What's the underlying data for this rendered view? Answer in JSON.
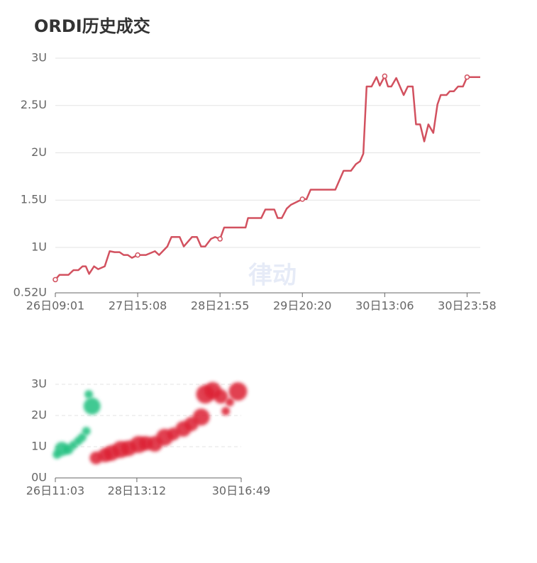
{
  "chart_data": [
    {
      "type": "line",
      "title": "ORDI历史成交",
      "watermark": "律动",
      "x": [
        0,
        0.5,
        1.6,
        2.2,
        2.8,
        3.3,
        3.7,
        4.1,
        4.7,
        5.2,
        6.0,
        6.6,
        7.2,
        7.8,
        8.3,
        8.8,
        9.3,
        10,
        11,
        12.1,
        12.6,
        13.6,
        14.1,
        15.1,
        15.6,
        16.6,
        17.2,
        17.7,
        18.2,
        18.9,
        19.4,
        20,
        20.5,
        23.1,
        23.4,
        25,
        25.5,
        26.6,
        27,
        27.5,
        28.1,
        28.6,
        30,
        30.5,
        31,
        34,
        35,
        35.9,
        36.5,
        37,
        37.4,
        37.8,
        38.4,
        39,
        39.4,
        40,
        40.4,
        40.8,
        41.4,
        42.3,
        42.8,
        43.4,
        43.8,
        44.3,
        44.8,
        45.3,
        45.9,
        46.4,
        46.8,
        47.5,
        47.9,
        48.4,
        48.9,
        49.5,
        50,
        51.6
      ],
      "series": [
        {
          "color": "#d2515f",
          "values": [
            0.66,
            0.71,
            0.71,
            0.76,
            0.76,
            0.8,
            0.8,
            0.72,
            0.8,
            0.77,
            0.8,
            0.96,
            0.95,
            0.95,
            0.92,
            0.92,
            0.89,
            0.92,
            0.92,
            0.96,
            0.92,
            1.01,
            1.11,
            1.11,
            1.01,
            1.11,
            1.11,
            1.01,
            1.01,
            1.09,
            1.11,
            1.09,
            1.21,
            1.21,
            1.31,
            1.31,
            1.4,
            1.4,
            1.31,
            1.31,
            1.41,
            1.45,
            1.51,
            1.51,
            1.61,
            1.61,
            1.81,
            1.81,
            1.88,
            1.91,
            1.99,
            2.7,
            2.7,
            2.8,
            2.71,
            2.81,
            2.7,
            2.7,
            2.79,
            2.61,
            2.7,
            2.7,
            2.3,
            2.3,
            2.12,
            2.3,
            2.21,
            2.51,
            2.61,
            2.61,
            2.65,
            2.65,
            2.7,
            2.7,
            2.8,
            2.8
          ]
        }
      ],
      "xlim": [
        0,
        51.6
      ],
      "xticks": [
        {
          "value": 0,
          "label": "26日09:01"
        },
        {
          "value": 10,
          "label": "27日15:08"
        },
        {
          "value": 20,
          "label": "28日21:55"
        },
        {
          "value": 30,
          "label": "29日20:20"
        },
        {
          "value": 40,
          "label": "30日13:06"
        },
        {
          "value": 50,
          "label": "30日23:58"
        }
      ],
      "ylim": [
        0.52,
        3
      ],
      "yticks": [
        {
          "value": 0.52,
          "label": "0.52U"
        },
        {
          "value": 1,
          "label": "1U"
        },
        {
          "value": 1.5,
          "label": "1.5U"
        },
        {
          "value": 2,
          "label": "2U"
        },
        {
          "value": 2.5,
          "label": "2.5U"
        },
        {
          "value": 3,
          "label": "3U"
        }
      ],
      "grid": true
    },
    {
      "type": "bubble",
      "series": [
        {
          "color": "#1fbf7f",
          "x": [
            0.2,
            0.8,
            1.6,
            2.2,
            2.8,
            3.3,
            3.8,
            4.1,
            4.5
          ],
          "values": [
            0.75,
            0.93,
            0.91,
            1.05,
            1.18,
            1.3,
            1.5,
            2.68,
            2.3
          ],
          "sizes": [
            6,
            10,
            7,
            6,
            6,
            6,
            6,
            6,
            12
          ]
        },
        {
          "color": "#dc1e32",
          "x": [
            5.0,
            6.1,
            6.9,
            8.0,
            9.0,
            10.2,
            11.1,
            12.2,
            13.4,
            14.5,
            15.7,
            16.7,
            17.9,
            18.4,
            19.3,
            20.3,
            20.9,
            21.4,
            22.4
          ],
          "values": [
            0.64,
            0.73,
            0.8,
            0.91,
            0.95,
            1.07,
            1.11,
            1.09,
            1.3,
            1.41,
            1.57,
            1.73,
            1.95,
            2.68,
            2.8,
            2.61,
            2.14,
            2.43,
            2.77
          ],
          "sizes": [
            9,
            10,
            11,
            12,
            11,
            12,
            10,
            11,
            12,
            9,
            11,
            10,
            12,
            13,
            12,
            10,
            6,
            6,
            13
          ]
        }
      ],
      "xlim": [
        0,
        22.8
      ],
      "xticks": [
        {
          "value": 0,
          "label": "26日11:03"
        },
        {
          "value": 10,
          "label": "28日13:12"
        },
        {
          "value": 22.8,
          "label": "30日16:49"
        }
      ],
      "ylim": [
        0,
        3
      ],
      "yticks": [
        {
          "value": 0,
          "label": "0U"
        },
        {
          "value": 1,
          "label": "1U"
        },
        {
          "value": 2,
          "label": "2U"
        },
        {
          "value": 3,
          "label": "3U"
        }
      ],
      "grid": true,
      "grid_dashed": true
    }
  ]
}
